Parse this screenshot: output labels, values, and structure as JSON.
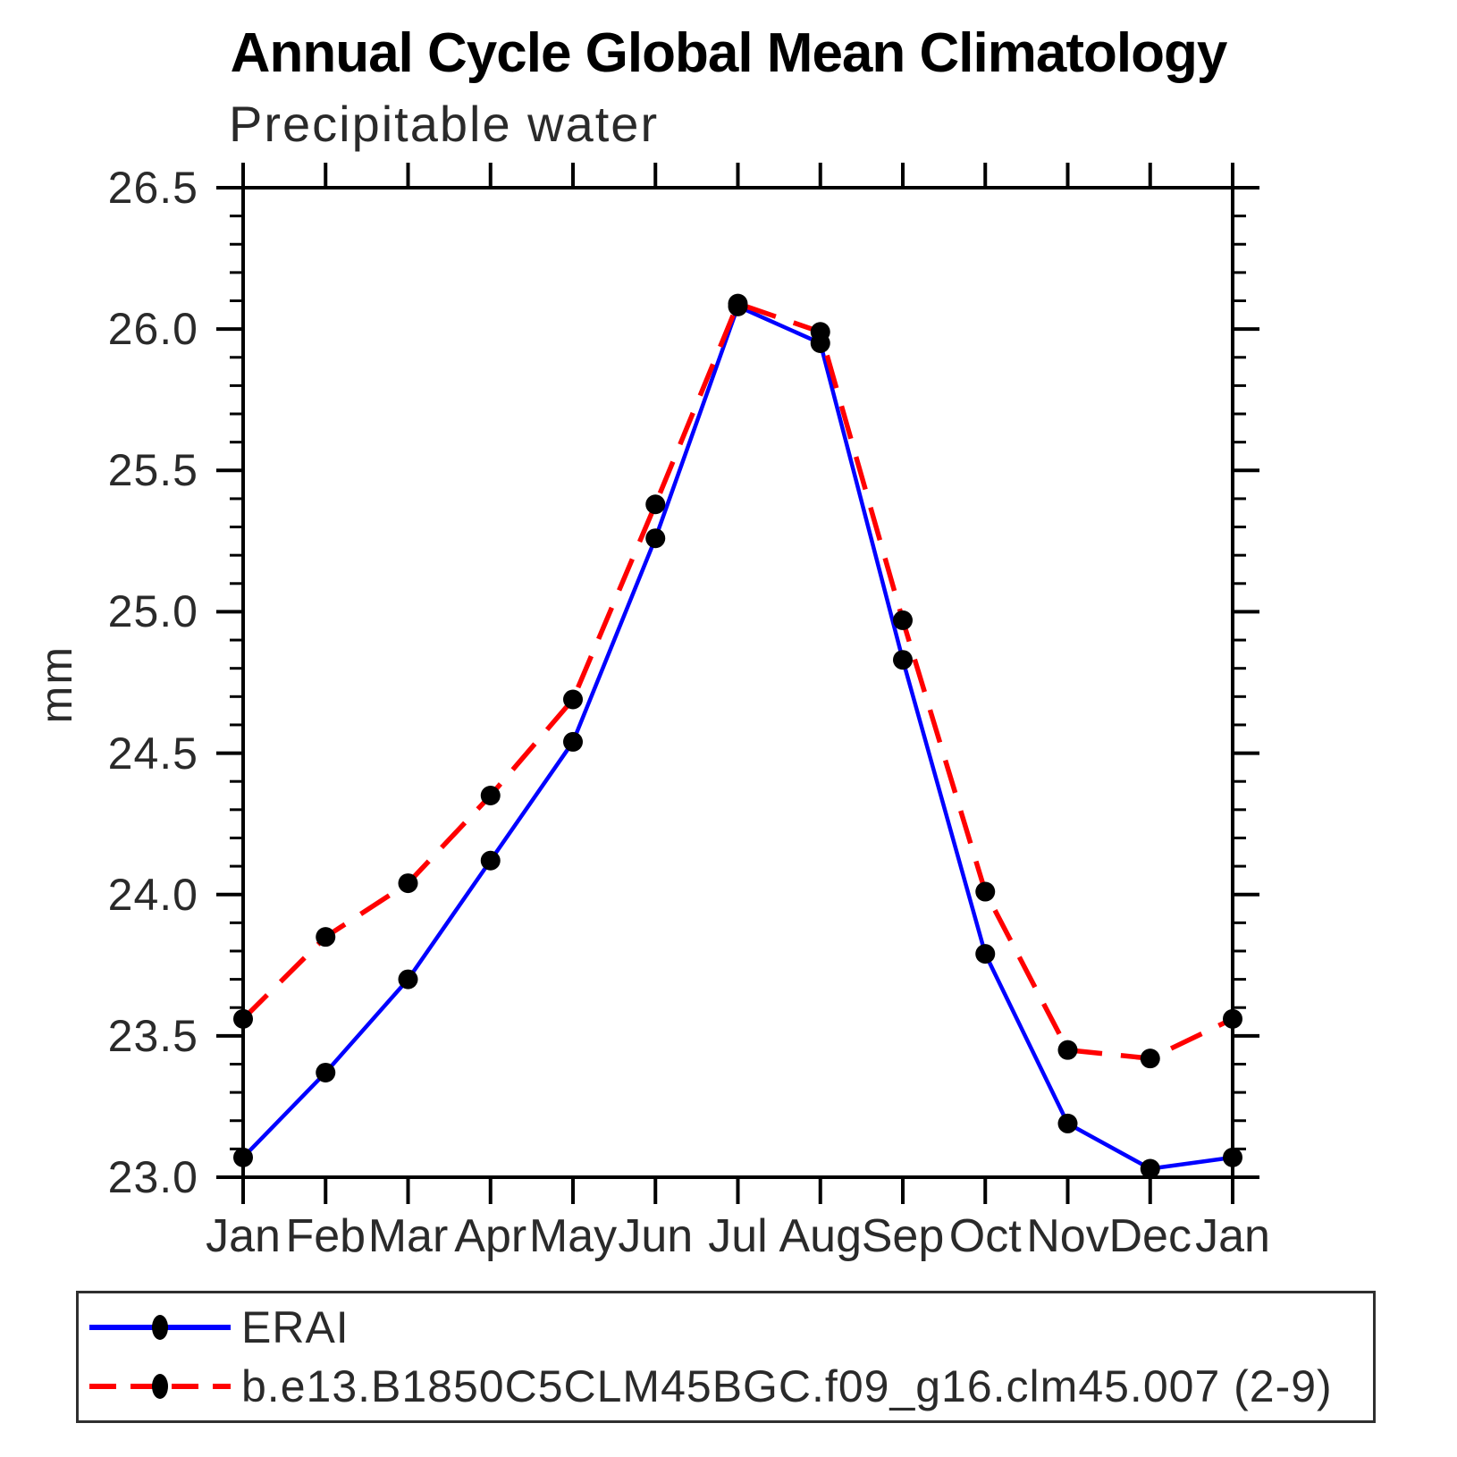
{
  "chart_data": {
    "type": "line",
    "title": "Annual Cycle Global Mean Climatology",
    "subtitle": "Precipitable water",
    "ylabel": "mm",
    "xlabel": "",
    "categories": [
      "Jan",
      "Feb",
      "Mar",
      "Apr",
      "May",
      "Jun",
      "Jul",
      "Aug",
      "Sep",
      "Oct",
      "Nov",
      "Dec",
      "Jan"
    ],
    "ylim": [
      23.0,
      26.5
    ],
    "ytick_step": 0.5,
    "minor_tick_step": 0.1,
    "ytick_labels": [
      "23.0",
      "23.5",
      "24.0",
      "24.5",
      "25.0",
      "25.5",
      "26.0",
      "26.5"
    ],
    "grid": false,
    "legend_position": "bottom-left-box",
    "marker_color": "#000000",
    "axis_color": "#000000",
    "series": [
      {
        "name": "ERAI",
        "color": "#0000ff",
        "line_style": "solid",
        "marker": "filled-circle",
        "values": [
          23.07,
          23.37,
          23.7,
          24.12,
          24.54,
          25.26,
          26.08,
          25.95,
          24.83,
          23.79,
          23.19,
          23.03,
          23.07
        ]
      },
      {
        "name": "b.e13.B1850C5CLM45BGC.f09_g16.clm45.007 (2-9)",
        "color": "#ff0000",
        "line_style": "dashed",
        "marker": "filled-circle",
        "values": [
          23.56,
          23.85,
          24.04,
          24.35,
          24.69,
          25.38,
          26.09,
          25.99,
          24.97,
          24.01,
          23.45,
          23.42,
          23.56
        ]
      }
    ]
  }
}
